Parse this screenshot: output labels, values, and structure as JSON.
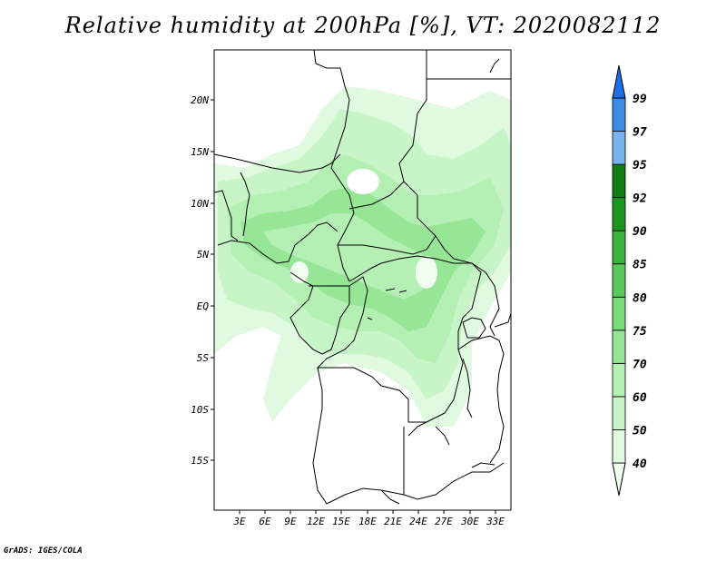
{
  "title": "Relative humidity at 200hPa [%], VT: 2020082112",
  "credit": "GrADS: IGES/COLA",
  "map": {
    "lon_labels": [
      "3E",
      "6E",
      "9E",
      "12E",
      "15E",
      "18E",
      "21E",
      "24E",
      "27E",
      "30E",
      "33E"
    ],
    "lat_labels": [
      "20N",
      "15N",
      "10N",
      "5N",
      "EQ",
      "5S",
      "10S",
      "15S"
    ]
  },
  "colorbar": {
    "levels": [
      "40",
      "50",
      "60",
      "70",
      "75",
      "80",
      "85",
      "90",
      "92",
      "95",
      "97",
      "99"
    ],
    "colors": [
      "#f0fff0",
      "#e0fae0",
      "#c8f5c8",
      "#b4f0b4",
      "#96e696",
      "#78dc78",
      "#5ac85a",
      "#3cb43c",
      "#1e961e",
      "#0f7d0f",
      "#78b4f0",
      "#3c8ce6",
      "#1e6ee6"
    ]
  }
}
